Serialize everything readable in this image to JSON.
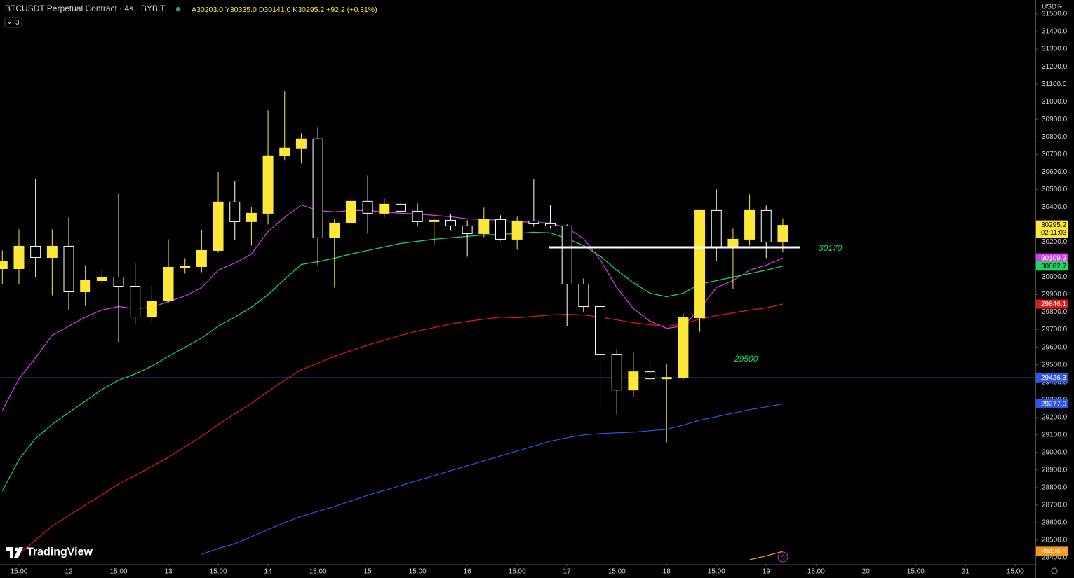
{
  "header": {
    "symbol": "BTCUSDT Perpetual Contract · 4s · BYBIT",
    "ohlc": [
      {
        "key": "A",
        "value": "30203.0"
      },
      {
        "key": "Y",
        "value": "30335.0"
      },
      {
        "key": "D",
        "value": "30141.0"
      },
      {
        "key": "K",
        "value": "30295.2"
      }
    ],
    "change": "+92.2 (+0.31%)",
    "indicators_badge": "3",
    "currency": "USDT",
    "brand": "TradingView"
  },
  "chart_data": {
    "type": "candlestick",
    "x": [
      0,
      1,
      2,
      3,
      4,
      5,
      6,
      7,
      8,
      9,
      10,
      11,
      12,
      13,
      14,
      15,
      16,
      17,
      18,
      19,
      20,
      21,
      22,
      23,
      24,
      25,
      26,
      27,
      28,
      29,
      30,
      31,
      32,
      33,
      34,
      35,
      36,
      37,
      38,
      39,
      40,
      41,
      42,
      43,
      44,
      45,
      46,
      47
    ],
    "open": [
      30048,
      30048,
      30176,
      30112,
      30176,
      29916,
      29980,
      30000,
      29948,
      29772,
      29864,
      30056,
      30060,
      30152,
      30428,
      30316,
      30364,
      30692,
      30736,
      30788,
      30224,
      30308,
      30432,
      30364,
      30416,
      30376,
      30316,
      30324,
      30292,
      30248,
      30328,
      30216,
      30320,
      30304,
      30292,
      29960,
      29832,
      29560,
      29356,
      29460,
      29420,
      29428,
      29768,
      30380,
      30172,
      30216,
      30380,
      30203
    ],
    "high": [
      30152,
      30272,
      30560,
      30272,
      30340,
      30068,
      30044,
      30476,
      30080,
      29952,
      30216,
      30108,
      30268,
      30600,
      30548,
      30400,
      30952,
      31060,
      30820,
      30856,
      30332,
      30512,
      30580,
      30452,
      30448,
      30420,
      30332,
      30360,
      30324,
      30396,
      30352,
      30344,
      30560,
      30412,
      30300,
      29992,
      29868,
      29588,
      29572,
      29532,
      29504,
      29792,
      30380,
      30500,
      30276,
      30472,
      30408,
      30335
    ],
    "low": [
      29960,
      29960,
      30000,
      29896,
      29812,
      29836,
      29952,
      29628,
      29732,
      29740,
      29852,
      30020,
      30028,
      30140,
      30212,
      30180,
      30300,
      30664,
      30648,
      30068,
      29940,
      30240,
      30248,
      30340,
      30352,
      30288,
      30180,
      30264,
      30116,
      30228,
      30208,
      30156,
      30288,
      30276,
      29720,
      29800,
      29268,
      29216,
      29316,
      29368,
      29056,
      29416,
      29688,
      30092,
      29932,
      30180,
      30108,
      30141
    ],
    "close": [
      30088,
      30176,
      30112,
      30176,
      29916,
      29980,
      30000,
      29948,
      29772,
      29864,
      30056,
      30060,
      30152,
      30428,
      30316,
      30364,
      30692,
      30736,
      30788,
      30224,
      30308,
      30432,
      30364,
      30416,
      30376,
      30316,
      30324,
      30292,
      30248,
      30328,
      30216,
      30320,
      30304,
      30292,
      29960,
      29832,
      29560,
      29356,
      29460,
      29420,
      29428,
      29768,
      30380,
      30172,
      30216,
      30380,
      30200,
      30295.2
    ],
    "up_color": "#fde83a",
    "down_color": "#ffffff",
    "close_label_color": "#fde83a",
    "countdown": "02:11:03",
    "series": [
      {
        "color": "#d63cf0",
        "last_value_label": "30109.3",
        "values": [
          29240,
          29420,
          29540,
          29668,
          29720,
          29772,
          29812,
          29832,
          29820,
          29828,
          29860,
          29892,
          29940,
          30040,
          30080,
          30132,
          30260,
          30340,
          30412,
          30380,
          30372,
          30380,
          30380,
          30372,
          30364,
          30360,
          30352,
          30344,
          30332,
          30328,
          30324,
          30316,
          30312,
          30308,
          30280,
          30220,
          30100,
          29940,
          29820,
          29748,
          29708,
          29720,
          29820,
          29940,
          29980,
          30040,
          30068,
          30109.3
        ]
      },
      {
        "color": "#1ed760",
        "last_value_label": "30062.7",
        "values": [
          28780,
          28960,
          29080,
          29160,
          29228,
          29292,
          29360,
          29412,
          29448,
          29492,
          29548,
          29600,
          29652,
          29720,
          29772,
          29828,
          29900,
          29988,
          30072,
          30088,
          30108,
          30132,
          30152,
          30172,
          30192,
          30204,
          30216,
          30224,
          30232,
          30240,
          30244,
          30248,
          30256,
          30252,
          30220,
          30180,
          30120,
          30040,
          29968,
          29908,
          29888,
          29908,
          29960,
          29980,
          30000,
          30020,
          30040,
          30062.7
        ]
      },
      {
        "color": "#e01818",
        "last_value_label": "29846.1",
        "values": [
          null,
          28420,
          28500,
          28580,
          28640,
          28700,
          28760,
          28820,
          28868,
          28920,
          28972,
          29032,
          29092,
          29160,
          29220,
          29280,
          29348,
          29412,
          29472,
          29508,
          29548,
          29580,
          29612,
          29640,
          29668,
          29692,
          29712,
          29732,
          29748,
          29760,
          29772,
          29768,
          29776,
          29784,
          29788,
          29784,
          29772,
          29756,
          29740,
          29728,
          29720,
          29732,
          29760,
          29780,
          29796,
          29812,
          29824,
          29846.1
        ]
      },
      {
        "color": "#2f56e6",
        "last_value_label": "29277.0",
        "values": [
          null,
          null,
          null,
          null,
          null,
          null,
          null,
          null,
          null,
          null,
          null,
          null,
          28420,
          28452,
          28480,
          28520,
          28560,
          28600,
          28636,
          28664,
          28692,
          28724,
          28756,
          28784,
          28812,
          28840,
          28868,
          28896,
          28924,
          28952,
          28980,
          29008,
          29036,
          29064,
          29084,
          29100,
          29108,
          29112,
          29116,
          29124,
          29132,
          29156,
          29184,
          29204,
          29224,
          29244,
          29260,
          29277
        ]
      },
      {
        "color": "#f39a1e",
        "last_value_label": "28436.5",
        "values": [
          null,
          null,
          null,
          null,
          null,
          null,
          null,
          null,
          null,
          null,
          null,
          null,
          null,
          null,
          null,
          null,
          null,
          null,
          null,
          null,
          null,
          null,
          null,
          null,
          null,
          null,
          null,
          null,
          null,
          null,
          null,
          null,
          null,
          null,
          null,
          null,
          null,
          null,
          null,
          null,
          null,
          null,
          null,
          null,
          null,
          28388,
          28410,
          28436.5
        ]
      }
    ],
    "hline": {
      "value": 29426.3,
      "color": "#2f56e6"
    },
    "segment": {
      "value": 30170,
      "color": "#ffffff"
    },
    "segment_label": "30170",
    "annotation": "29500",
    "annotation_color": "#1ed760",
    "xlim": [
      -0.14,
      62.21
    ],
    "ylim": [
      28364,
      31580
    ],
    "xticks": [
      {
        "value": 1,
        "label": "15:00"
      },
      {
        "value": 4,
        "label": "12"
      },
      {
        "value": 7,
        "label": "15:00"
      },
      {
        "value": 10,
        "label": "13"
      },
      {
        "value": 13,
        "label": "15:00"
      },
      {
        "value": 16,
        "label": "14"
      },
      {
        "value": 19,
        "label": "15:00"
      },
      {
        "value": 22,
        "label": "15"
      },
      {
        "value": 25,
        "label": "15:00"
      },
      {
        "value": 28,
        "label": "16"
      },
      {
        "value": 31,
        "label": "15:00"
      },
      {
        "value": 34,
        "label": "17"
      },
      {
        "value": 37,
        "label": "15:00"
      },
      {
        "value": 40,
        "label": "18"
      },
      {
        "value": 43,
        "label": "15:00"
      },
      {
        "value": 46,
        "label": "19"
      },
      {
        "value": 49,
        "label": "15:00"
      },
      {
        "value": 52,
        "label": "20"
      },
      {
        "value": 55,
        "label": "15:00"
      },
      {
        "value": 58,
        "label": "21"
      },
      {
        "value": 61,
        "label": "15:00"
      }
    ],
    "yticks": [
      {
        "value": 28400,
        "label": "28400.0"
      },
      {
        "value": 28500,
        "label": "28500.0"
      },
      {
        "value": 28600,
        "label": "28600.0"
      },
      {
        "value": 28700,
        "label": "28700.0"
      },
      {
        "value": 28800,
        "label": "28800.0"
      },
      {
        "value": 28900,
        "label": "28900.0"
      },
      {
        "value": 29000,
        "label": "29000.0"
      },
      {
        "value": 29100,
        "label": "29100.0"
      },
      {
        "value": 29200,
        "label": "29200.0"
      },
      {
        "value": 29300,
        "label": "29300.0"
      },
      {
        "value": 29400,
        "label": "29400.0"
      },
      {
        "value": 29500,
        "label": "29500.0"
      },
      {
        "value": 29600,
        "label": "29600.0"
      },
      {
        "value": 29700,
        "label": "29700.0"
      },
      {
        "value": 29800,
        "label": "29800.0"
      },
      {
        "value": 29900,
        "label": "29900.0"
      },
      {
        "value": 30000,
        "label": "30000.0"
      },
      {
        "value": 30100,
        "label": "30100.0"
      },
      {
        "value": 30200,
        "label": "30200.0"
      },
      {
        "value": 30300,
        "label": "30300.0"
      },
      {
        "value": 30400,
        "label": "30400.0"
      },
      {
        "value": 30500,
        "label": "30500.0"
      },
      {
        "value": 30600,
        "label": "30600.0"
      },
      {
        "value": 30700,
        "label": "30700.0"
      },
      {
        "value": 30800,
        "label": "30800.0"
      },
      {
        "value": 30900,
        "label": "30900.0"
      },
      {
        "value": 31000,
        "label": "31000.0"
      },
      {
        "value": 31100,
        "label": "31100.0"
      },
      {
        "value": 31200,
        "label": "31200.0"
      },
      {
        "value": 31300,
        "label": "31300.0"
      },
      {
        "value": 31400,
        "label": "31400.0"
      },
      {
        "value": 31500,
        "label": "31500.0"
      }
    ]
  }
}
